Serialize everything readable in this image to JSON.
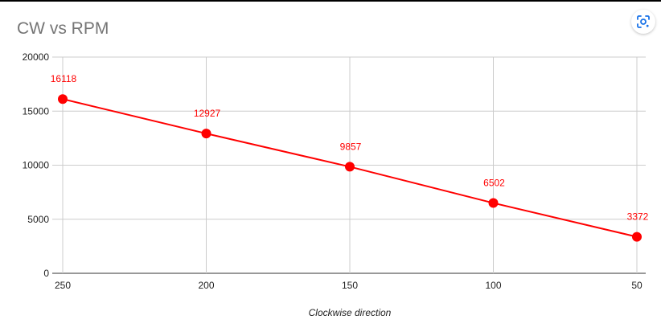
{
  "lens_button": {
    "icon": "google-lens-icon"
  },
  "colors": {
    "series": "#ff0000",
    "grid": "#cccccc",
    "title": "#757575",
    "axis_text": "#222222",
    "lens_icon": "#1a73e8"
  },
  "chart_data": {
    "type": "line",
    "title": "CW vs RPM",
    "xlabel": "Clockwise direction",
    "ylabel": "",
    "categories": [
      "250",
      "200",
      "150",
      "100",
      "50"
    ],
    "series": [
      {
        "values": [
          16118,
          12927,
          9857,
          6502,
          3372
        ]
      }
    ],
    "data_labels": [
      "16118",
      "12927",
      "9857",
      "6502",
      "3372"
    ],
    "yticks": [
      "0",
      "5000",
      "10000",
      "15000",
      "20000"
    ],
    "ylim": [
      0,
      20000
    ],
    "grid": true,
    "legend": "none"
  }
}
